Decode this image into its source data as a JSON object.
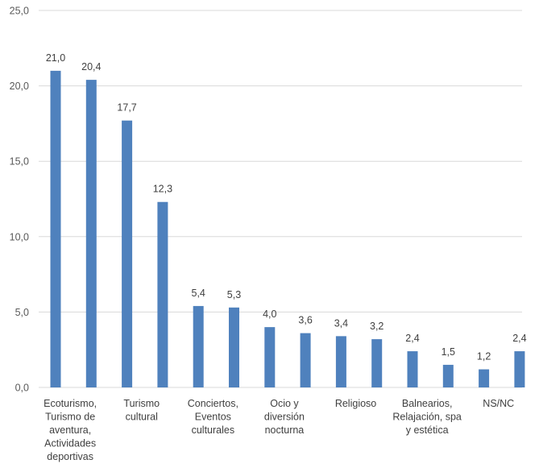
{
  "chart_data": {
    "type": "bar",
    "title": "",
    "xlabel": "",
    "ylabel": "",
    "ylim": [
      0,
      25
    ],
    "yticks": [
      "0,0",
      "5,0",
      "10,0",
      "15,0",
      "20,0",
      "25,0"
    ],
    "grid": true,
    "legend": "none",
    "bar_color": "#4f81bd",
    "values": [
      21.0,
      20.4,
      17.7,
      12.3,
      5.4,
      5.3,
      4.0,
      3.6,
      3.4,
      3.2,
      2.4,
      1.5,
      1.2,
      2.4
    ],
    "value_labels": [
      "21,0",
      "20,4",
      "17,7",
      "12,3",
      "5,4",
      "5,3",
      "4,0",
      "3,6",
      "3,4",
      "3,2",
      "2,4",
      "1,5",
      "1,2",
      "2,4"
    ],
    "category_labels": [
      {
        "bar": 0,
        "lines": [
          "Ecoturismo,",
          "Turismo de",
          "aventura,",
          "Actividades",
          "deportivas"
        ]
      },
      {
        "bar": 2,
        "lines": [
          "Turismo",
          "cultural"
        ]
      },
      {
        "bar": 4,
        "lines": [
          "Conciertos,",
          "Eventos",
          "culturales"
        ]
      },
      {
        "bar": 6,
        "lines": [
          "Ocio y",
          "diversión",
          "nocturna"
        ]
      },
      {
        "bar": 8,
        "lines": [
          "Religioso"
        ]
      },
      {
        "bar": 10,
        "lines": [
          "Balnearios,",
          "Relajación, spa",
          "y estética"
        ]
      },
      {
        "bar": 12,
        "lines": [
          "NS/NC"
        ]
      }
    ]
  }
}
